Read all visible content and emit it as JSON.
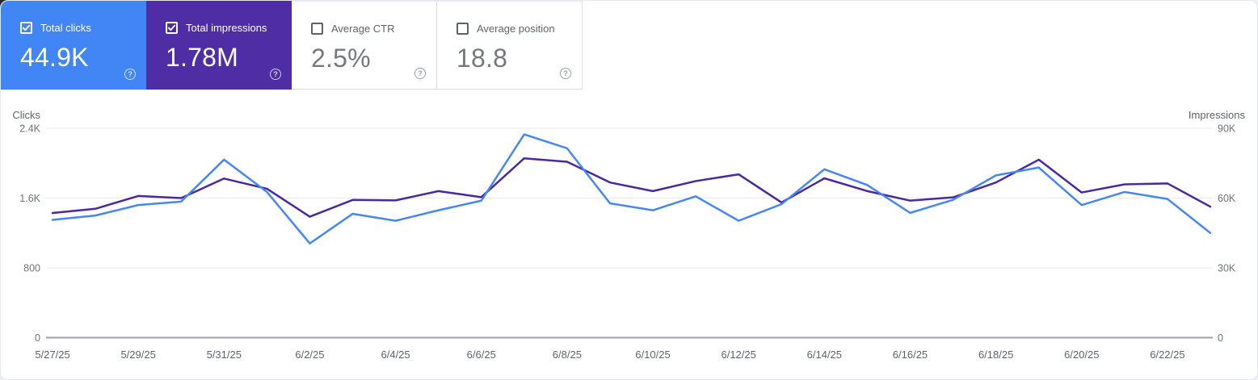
{
  "cards": [
    {
      "label": "Total clicks",
      "value": "44.9K",
      "checked": true,
      "color": "#4285f4"
    },
    {
      "label": "Total impressions",
      "value": "1.78M",
      "checked": true,
      "color": "#4e2da5"
    },
    {
      "label": "Average CTR",
      "value": "2.5%",
      "checked": false
    },
    {
      "label": "Average position",
      "value": "18.8",
      "checked": false
    }
  ],
  "icons": {
    "help_glyph": "?",
    "checkbox_checked": "checked-checkbox-icon",
    "checkbox_unchecked": "unchecked-checkbox-icon"
  },
  "chart_data": {
    "type": "line",
    "x": [
      "5/27/25",
      "5/28/25",
      "5/29/25",
      "5/30/25",
      "5/31/25",
      "6/1/25",
      "6/2/25",
      "6/3/25",
      "6/4/25",
      "6/5/25",
      "6/6/25",
      "6/7/25",
      "6/8/25",
      "6/9/25",
      "6/10/25",
      "6/11/25",
      "6/12/25",
      "6/13/25",
      "6/14/25",
      "6/15/25",
      "6/16/25",
      "6/17/25",
      "6/18/25",
      "6/19/25",
      "6/20/25",
      "6/21/25",
      "6/22/25",
      "6/23/25"
    ],
    "x_tick_labels": [
      "5/27/25",
      "5/29/25",
      "5/31/25",
      "6/2/25",
      "6/4/25",
      "6/6/25",
      "6/8/25",
      "6/10/25",
      "6/12/25",
      "6/14/25",
      "6/16/25",
      "6/18/25",
      "6/20/25",
      "6/22/25"
    ],
    "series": [
      {
        "name": "Total clicks",
        "axis": "left",
        "color": "#4687f4",
        "values": [
          1350,
          1400,
          1520,
          1560,
          2040,
          1670,
          1080,
          1420,
          1340,
          1460,
          1570,
          2330,
          2170,
          1540,
          1460,
          1620,
          1340,
          1530,
          1930,
          1750,
          1430,
          1580,
          1860,
          1950,
          1520,
          1670,
          1590,
          1200
        ]
      },
      {
        "name": "Total impressions",
        "axis": "right",
        "color": "#4a28a2",
        "values": [
          53600,
          55400,
          60900,
          60000,
          68400,
          64000,
          52000,
          59200,
          59000,
          63000,
          60400,
          77100,
          75600,
          66700,
          63000,
          67300,
          70200,
          58100,
          68500,
          63000,
          58900,
          60300,
          66700,
          76500,
          62400,
          65900,
          66300,
          56300
        ]
      }
    ],
    "left_axis": {
      "title": "Clicks",
      "max": 2400,
      "tick_values": [
        0,
        800,
        1600,
        2400
      ],
      "tick_labels": [
        "0",
        "800",
        "1.6K",
        "2.4K"
      ]
    },
    "right_axis": {
      "title": "Impressions",
      "max": 90000,
      "tick_values": [
        0,
        30000,
        60000,
        90000
      ],
      "tick_labels": [
        "0",
        "30K",
        "60K",
        "90K"
      ]
    },
    "grid": true,
    "legend": "none"
  }
}
